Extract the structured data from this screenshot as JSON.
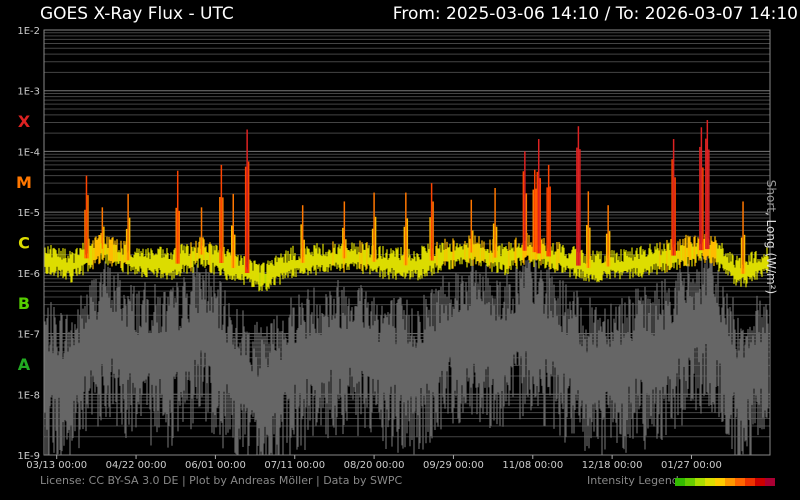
{
  "header": {
    "title": "GOES X-Ray Flux - UTC",
    "range": "From: 2025-03-06 14:10  /  To: 2026-03-07 14:10"
  },
  "footer": {
    "credits": "License: CC BY-SA 3.0 DE | Plot by Andreas Möller | Data by SWPC",
    "legend_label": "Intensity Legend"
  },
  "axis": {
    "ylabel_short": "Short",
    "ylabel_long": ", Long (W/m²)"
  },
  "colors": {
    "short": "#666666",
    "legend": [
      "#33bb00",
      "#66cc00",
      "#aadd00",
      "#dddd00",
      "#ffcc00",
      "#ff9900",
      "#ff6600",
      "#ee3300",
      "#cc0000",
      "#aa0033"
    ]
  },
  "chart_data": {
    "type": "line",
    "title": "GOES X-Ray Flux - UTC",
    "xlabel": "",
    "ylabel": "Short, Long (W/m²)",
    "yscale": "log",
    "ylim": [
      1e-09,
      0.01
    ],
    "y_ticks": [
      "1E-9",
      "1E-8",
      "1E-7",
      "1E-6",
      "1E-5",
      "1E-4",
      "1E-3",
      "1E-2"
    ],
    "x_range": [
      "2025-03-06 14:10",
      "2026-03-07 14:10"
    ],
    "x_ticks": [
      "03/13 00:00",
      "04/22 00:00",
      "06/01 00:00",
      "07/11 00:00",
      "08/20 00:00",
      "09/29 00:00",
      "11/08 00:00",
      "12/18 00:00",
      "01/27 00:00"
    ],
    "flare_classes": [
      {
        "label": "A",
        "color": "#22aa22"
      },
      {
        "label": "B",
        "color": "#55cc00"
      },
      {
        "label": "C",
        "color": "#dddd00"
      },
      {
        "label": "M",
        "color": "#ff7700"
      },
      {
        "label": "X",
        "color": "#dd2222"
      }
    ],
    "grid": true,
    "series": [
      {
        "name": "Long",
        "color": "#dddd00",
        "baseline": [
          [
            "2025-03-06",
            1.8e-06
          ],
          [
            "2025-03-20",
            1.2e-06
          ],
          [
            "2025-04-05",
            2.5e-06
          ],
          [
            "2025-04-20",
            1.5e-06
          ],
          [
            "2025-05-10",
            1.3e-06
          ],
          [
            "2025-05-25",
            2e-06
          ],
          [
            "2025-06-10",
            1.2e-06
          ],
          [
            "2025-06-25",
            8e-07
          ],
          [
            "2025-07-10",
            1.4e-06
          ],
          [
            "2025-07-25",
            1.6e-06
          ],
          [
            "2025-08-10",
            1.8e-06
          ],
          [
            "2025-08-25",
            1.4e-06
          ],
          [
            "2025-09-10",
            1.3e-06
          ],
          [
            "2025-09-25",
            1.9e-06
          ],
          [
            "2025-10-10",
            2.2e-06
          ],
          [
            "2025-10-25",
            1.6e-06
          ],
          [
            "2025-11-05",
            2.4e-06
          ],
          [
            "2025-11-20",
            1.7e-06
          ],
          [
            "2025-12-05",
            1.2e-06
          ],
          [
            "2025-12-20",
            1.3e-06
          ],
          [
            "2026-01-05",
            1.5e-06
          ],
          [
            "2026-01-20",
            2e-06
          ],
          [
            "2026-02-05",
            2.5e-06
          ],
          [
            "2026-02-20",
            9e-07
          ],
          [
            "2026-03-07",
            1.5e-06
          ]
        ],
        "peaks": [
          [
            "2025-03-28",
            4e-05
          ],
          [
            "2025-04-05",
            1.2e-05
          ],
          [
            "2025-04-18",
            2e-05
          ],
          [
            "2025-05-13",
            4.8e-05
          ],
          [
            "2025-05-25",
            1.2e-05
          ],
          [
            "2025-06-04",
            6e-05
          ],
          [
            "2025-06-10",
            2e-05
          ],
          [
            "2025-06-17",
            0.00023
          ],
          [
            "2025-07-15",
            1.3e-05
          ],
          [
            "2025-08-05",
            1.5e-05
          ],
          [
            "2025-08-20",
            2.1e-05
          ],
          [
            "2025-09-05",
            2.1e-05
          ],
          [
            "2025-09-18",
            3e-05
          ],
          [
            "2025-10-08",
            1.6e-05
          ],
          [
            "2025-10-20",
            2.5e-05
          ],
          [
            "2025-11-04",
            0.0001
          ],
          [
            "2025-11-09",
            5e-05
          ],
          [
            "2025-11-11",
            0.00016
          ],
          [
            "2025-11-16",
            6e-05
          ],
          [
            "2025-12-01",
            0.00026
          ],
          [
            "2025-12-06",
            2.2e-05
          ],
          [
            "2025-12-16",
            1.3e-05
          ],
          [
            "2026-01-18",
            0.00016
          ],
          [
            "2026-02-01",
            0.00025
          ],
          [
            "2026-02-04",
            0.00033
          ],
          [
            "2026-02-22",
            1.5e-05
          ]
        ]
      },
      {
        "name": "Short",
        "color": "#666666",
        "baseline": [
          [
            "2025-03-06",
            3e-08
          ],
          [
            "2025-03-20",
            2e-08
          ],
          [
            "2025-04-05",
            1.5e-07
          ],
          [
            "2025-04-20",
            6e-08
          ],
          [
            "2025-05-10",
            5e-08
          ],
          [
            "2025-05-25",
            1.5e-07
          ],
          [
            "2025-06-10",
            3e-08
          ],
          [
            "2025-06-25",
            1e-08
          ],
          [
            "2025-07-10",
            4e-08
          ],
          [
            "2025-07-25",
            6e-08
          ],
          [
            "2025-08-10",
            8e-08
          ],
          [
            "2025-08-25",
            4e-08
          ],
          [
            "2025-09-10",
            3e-08
          ],
          [
            "2025-09-25",
            1e-07
          ],
          [
            "2025-10-10",
            1.5e-07
          ],
          [
            "2025-10-25",
            8e-08
          ],
          [
            "2025-11-05",
            2e-07
          ],
          [
            "2025-11-20",
            8e-08
          ],
          [
            "2025-12-05",
            3e-08
          ],
          [
            "2025-12-20",
            4e-08
          ],
          [
            "2026-01-05",
            5e-08
          ],
          [
            "2026-01-20",
            1e-07
          ],
          [
            "2026-02-05",
            2e-07
          ],
          [
            "2026-02-20",
            2e-08
          ],
          [
            "2026-03-07",
            5e-08
          ]
        ]
      }
    ]
  }
}
